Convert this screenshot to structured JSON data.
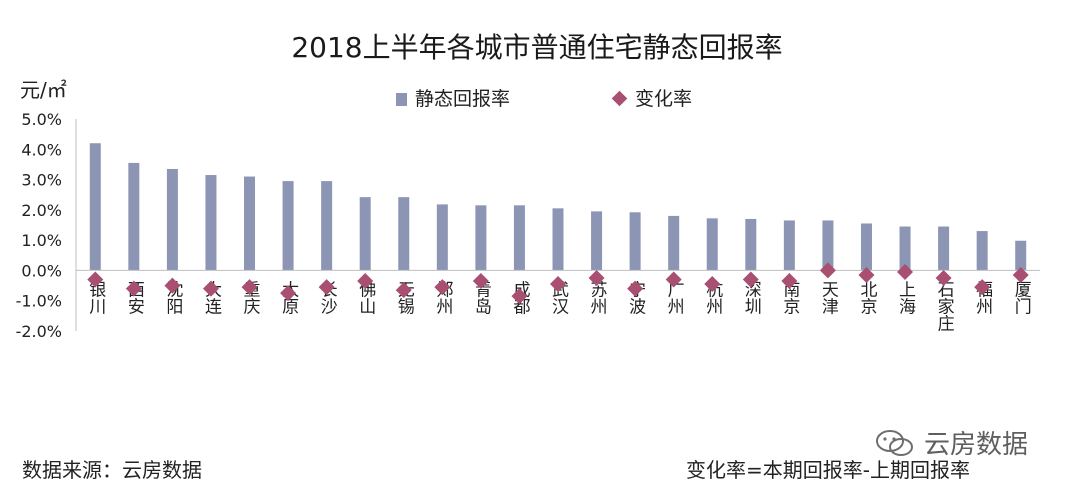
{
  "chart_data": {
    "type": "bar",
    "title": "2018上半年各城市普通住宅静态回报率",
    "ylabel": "元/㎡",
    "ylim": [
      -2.0,
      5.0
    ],
    "yticks": [
      "5.0%",
      "4.0%",
      "3.0%",
      "2.0%",
      "1.0%",
      "0.0%",
      "-1.0%",
      "-2.0%"
    ],
    "categories": [
      "银川",
      "西安",
      "沈阳",
      "大连",
      "重庆",
      "太原",
      "长沙",
      "佛山",
      "无锡",
      "郑州",
      "青岛",
      "成都",
      "武汉",
      "苏州",
      "宁波",
      "广州",
      "杭州",
      "深圳",
      "南京",
      "天津",
      "北京",
      "上海",
      "石家庄",
      "福州",
      "厦门"
    ],
    "series": [
      {
        "name": "静态回报率",
        "kind": "bar",
        "color": "#8c96b4",
        "values": [
          4.2,
          3.55,
          3.35,
          3.15,
          3.1,
          2.95,
          2.95,
          2.42,
          2.42,
          2.18,
          2.15,
          2.15,
          2.05,
          1.95,
          1.92,
          1.8,
          1.72,
          1.7,
          1.65,
          1.65,
          1.55,
          1.45,
          1.45,
          1.3,
          0.98
        ]
      },
      {
        "name": "变化率",
        "kind": "scatter",
        "marker": "diamond",
        "color": "#a84f72",
        "values": [
          -0.3,
          -0.6,
          -0.5,
          -0.6,
          -0.55,
          -0.75,
          -0.55,
          -0.35,
          -0.65,
          -0.55,
          -0.35,
          -0.85,
          -0.45,
          -0.25,
          -0.6,
          -0.3,
          -0.45,
          -0.3,
          -0.35,
          0.0,
          -0.15,
          -0.05,
          -0.25,
          -0.55,
          -0.15
        ]
      }
    ],
    "legend": [
      "静态回报率",
      "变化率"
    ]
  },
  "footer": {
    "source": "数据来源：云房数据",
    "formula": "变化率=本期回报率-上期回报率",
    "watermark": "云房数据"
  },
  "colors": {
    "bar": "#8c96b4",
    "marker": "#a84f72",
    "axis": "#bfbfbf"
  }
}
